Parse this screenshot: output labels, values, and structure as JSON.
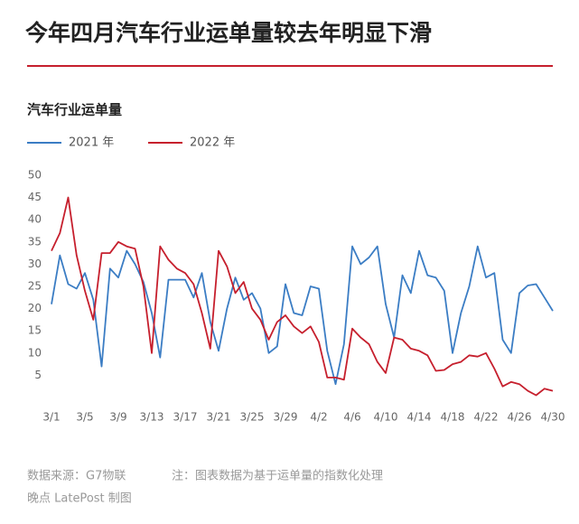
{
  "chart_data": {
    "type": "line",
    "title": "今年四月汽车行业运单量较去年明显下滑",
    "subtitle": "汽车行业运单量",
    "source": "数据来源：G7物联",
    "note": "注：图表数据为基于运单量的指数化处理",
    "credit": "晚点 LatePost 制图",
    "categories": [
      "3/1",
      null,
      null,
      null,
      "3/5",
      null,
      null,
      null,
      "3/9",
      null,
      null,
      null,
      "3/13",
      null,
      null,
      null,
      "3/17",
      null,
      null,
      null,
      "3/21",
      null,
      null,
      null,
      "3/25",
      null,
      null,
      null,
      "3/29",
      null,
      null,
      null,
      "4/2",
      null,
      null,
      null,
      "4/6",
      null,
      null,
      null,
      "4/10",
      null,
      null,
      null,
      "4/14",
      null,
      null,
      null,
      "4/18",
      null,
      null,
      null,
      "4/22",
      null,
      null,
      null,
      "4/26",
      null,
      null,
      null,
      "4/30"
    ],
    "series": [
      {
        "name": "2021 年",
        "color": "#3b7dc4",
        "values": [
          21,
          32,
          25.5,
          24.5,
          28,
          22,
          7,
          29,
          27,
          33,
          30,
          26,
          19,
          9,
          26.5,
          26.5,
          26.5,
          22.5,
          28,
          17,
          10.5,
          20,
          27,
          22,
          23.5,
          20,
          10,
          11.5,
          25.5,
          19,
          18.5,
          25,
          24.5,
          10.5,
          3,
          12,
          34,
          30,
          31.5,
          34,
          21,
          13.5,
          27.5,
          23.5,
          33,
          27.5,
          27,
          24,
          10,
          19,
          25,
          34,
          27,
          28,
          13,
          10,
          23.5,
          25.2,
          25.5,
          22.5,
          19.5
        ]
      },
      {
        "name": "2022 年",
        "color": "#c61f2d",
        "values": [
          33,
          37,
          45,
          32,
          24,
          17.5,
          32.5,
          32.5,
          35,
          34,
          33.5,
          25,
          10,
          34,
          31,
          29,
          28,
          25.5,
          19,
          11,
          33,
          29.5,
          23.5,
          26,
          20,
          17.5,
          13,
          17,
          18.5,
          16,
          14.5,
          16,
          12.5,
          4.5,
          4.5,
          4,
          15.5,
          13.5,
          12,
          8,
          5.5,
          13.5,
          13,
          11,
          10.5,
          9.5,
          6,
          6.2,
          7.5,
          8,
          9.5,
          9.2,
          10,
          6.5,
          2.5,
          3.5,
          3,
          1.5,
          0.5,
          2,
          1.5
        ]
      }
    ],
    "ylim": [
      0,
      50
    ],
    "yticks": [
      5,
      10,
      15,
      20,
      25,
      30,
      35,
      40,
      45,
      50
    ]
  }
}
